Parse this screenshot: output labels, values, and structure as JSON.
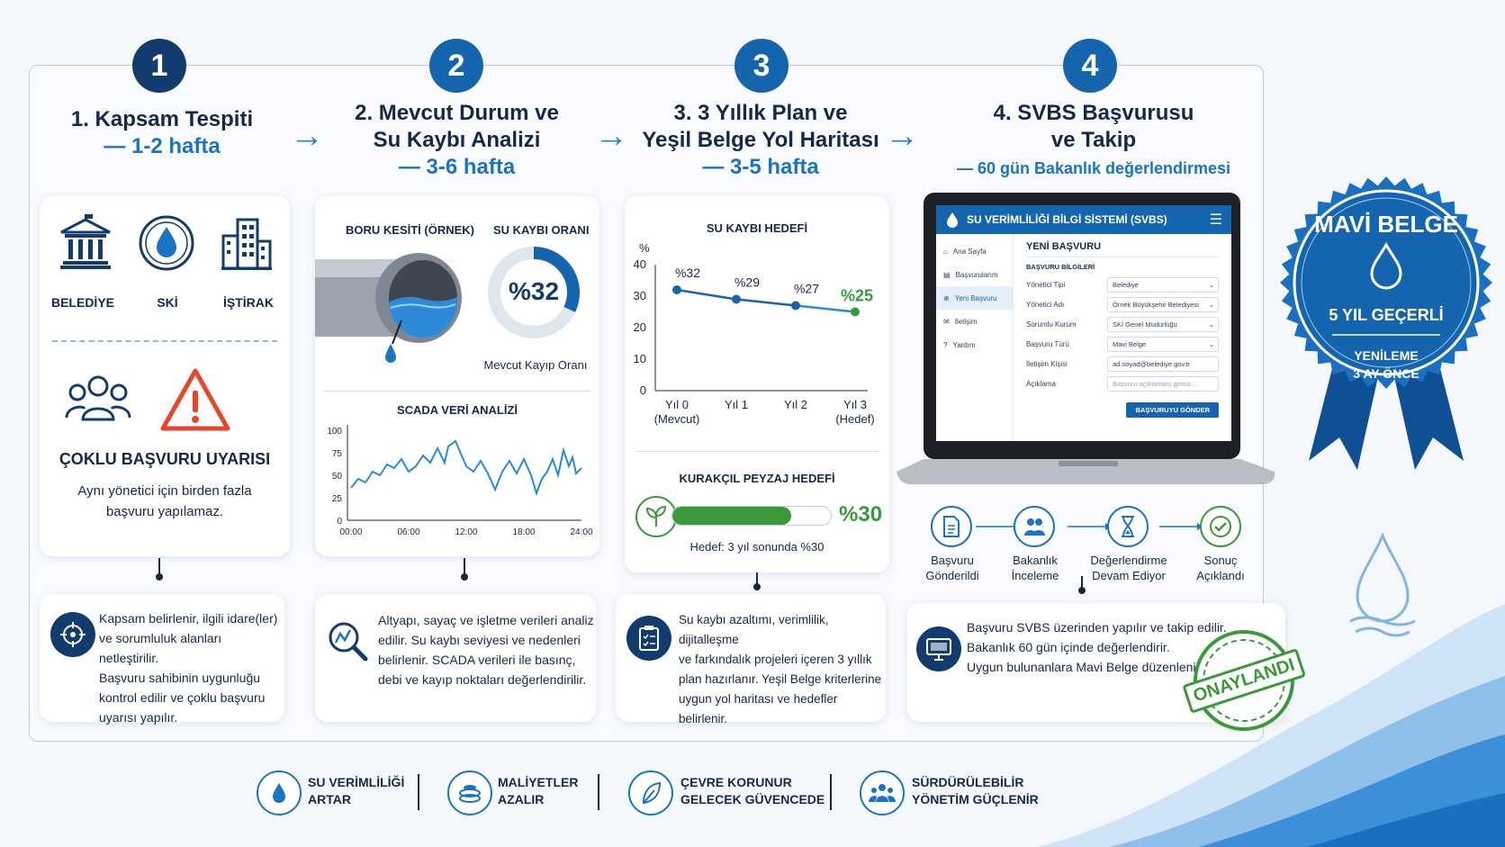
{
  "steps": [
    {
      "num": "1",
      "title": "1. Kapsam Tespiti",
      "duration": "— 1-2 hafta"
    },
    {
      "num": "2",
      "title_l1": "2. Mevcut Durum ve",
      "title_l2": "Su Kaybı Analizi",
      "duration": "— 3-6 hafta"
    },
    {
      "num": "3",
      "title_l1": "3. 3 Yıllık Plan ve",
      "title_l2": "Yeşil Belge Yol Haritası",
      "duration": "— 3-5 hafta"
    },
    {
      "num": "4",
      "title_l1": "4. SVBS Başvurusu",
      "title_l2": "ve Takip",
      "duration": "— 60 gün Bakanlık değerlendirmesi"
    }
  ],
  "card1": {
    "entities": [
      "BELEDİYE",
      "SKİ",
      "İŞTİRAK"
    ],
    "warning_title": "ÇOKLU BAŞVURU UYARISI",
    "warning_l1": "Aynı yönetici için birden fazla",
    "warning_l2": "başvuru yapılamaz."
  },
  "card2": {
    "pipe_label": "BORU KESİTİ (ÖRNEK)",
    "loss_label": "SU KAYBI ORANI",
    "loss_value": "%32",
    "loss_fraction": 0.32,
    "loss_caption": "Mevcut Kayıp Oranı",
    "scada_title": "SCADA VERİ ANALİZİ",
    "scada_y_ticks": [
      "100",
      "75",
      "50",
      "25",
      "0"
    ],
    "scada_x_ticks": [
      "00:00",
      "06:00",
      "12:00",
      "18:00",
      "24:00"
    ]
  },
  "card3": {
    "chart_title": "SU KAYBI HEDEFİ",
    "y_unit": "%",
    "y_ticks": [
      "40",
      "30",
      "20",
      "10",
      "0"
    ],
    "x_ticks": [
      [
        "Yıl 0",
        "(Mevcut)"
      ],
      [
        "Yıl 1",
        ""
      ],
      [
        "Yıl 2",
        ""
      ],
      [
        "Yıl 3",
        "(Hedef)"
      ]
    ],
    "point_labels": [
      "%32",
      "%29",
      "%27",
      "%25"
    ],
    "landscape_title": "KURAKÇIL PEYZAJ HEDEFİ",
    "landscape_value": "%30",
    "landscape_fraction": 0.75,
    "landscape_caption": "Hedef: 3 yıl sonunda %30"
  },
  "chart_data": {
    "type": "line",
    "title": "SU KAYBI HEDEFİ",
    "ylabel": "%",
    "categories": [
      "Yıl 0 (Mevcut)",
      "Yıl 1",
      "Yıl 2",
      "Yıl 3 (Hedef)"
    ],
    "values": [
      32,
      29,
      27,
      25
    ],
    "ylim": [
      0,
      40
    ]
  },
  "laptop": {
    "app_title": "SU VERİMLİLİĞİ BİLGİ SİSTEMİ (SVBS)",
    "sidebar": [
      "Ana Sayfa",
      "Başvurularım",
      "Yeni Başvuru",
      "İletişim",
      "Yardım"
    ],
    "form_title": "YENİ BAŞVURU",
    "section": "BAŞVURU BİLGİLERİ",
    "fields": [
      {
        "k": "Yönetici Tipi",
        "v": "Belediye"
      },
      {
        "k": "Yönetici Adı",
        "v": "Örnek Büyükşehir Belediyesi"
      },
      {
        "k": "Sorumlu Kurum",
        "v": "SKİ Genel Müdürlüğü"
      },
      {
        "k": "Başvuru Türü",
        "v": "Mavi Belge"
      },
      {
        "k": "İletişim Kişisi",
        "v": "ad.soyad@belediye.gov.tr"
      },
      {
        "k": "Açıklama",
        "v": "Başvuru açıklaması giriniz..."
      }
    ],
    "submit": "BAŞVURUYU GÖNDER"
  },
  "status_steps": [
    [
      "Başvuru",
      "Gönderildi"
    ],
    [
      "Bakanlık",
      "İnceleme"
    ],
    [
      "Değerlendirme",
      "Devam Ediyor"
    ],
    [
      "Sonuç",
      "Açıklandı"
    ]
  ],
  "descriptions": [
    [
      "Kapsam belirlenir, ilgili idare(ler)",
      "ve sorumluluk alanları netleştirilir.",
      "Başvuru sahibinin uygunluğu",
      "kontrol edilir ve çoklu başvuru",
      "uyarısı yapılır."
    ],
    [
      "Altyapı, sayaç ve işletme verileri analiz",
      "edilir. Su kaybı seviyesi ve nedenleri",
      "belirlenir. SCADA verileri ile basınç,",
      "debi ve kayıp noktaları değerlendirilir."
    ],
    [
      "Su kaybı azaltımı, verimlilik, dijitalleşme",
      "ve farkındalık projeleri içeren 3 yıllık",
      "plan hazırlanır. Yeşil Belge kriterlerine",
      "uygun yol haritası ve hedefler belirlenir."
    ],
    [
      "Başvuru SVBS üzerinden yapılır ve takip edilir.",
      "Bakanlık 60 gün içinde değerlendirir.",
      "Uygun bulunanlara Mavi Belge düzenlenir."
    ]
  ],
  "stamp": "ONAYLANDI",
  "badge": {
    "title": "MAVİ BELGE",
    "validity": "5 YIL GEÇERLİ",
    "renew_l1": "YENİLEME",
    "renew_l2": "3 AY ÖNCE"
  },
  "benefits": [
    [
      "SU VERİMLİLİĞİ",
      "ARTAR"
    ],
    [
      "MALİYETLER",
      "AZALIR"
    ],
    [
      "ÇEVRE KORUNUR",
      "GELECEK GÜVENCEDE"
    ],
    [
      "SÜRDÜRÜLEBİLİR",
      "YÖNETİM GÜÇLENİR"
    ]
  ],
  "colors": {
    "navy": "#123b6e",
    "blue": "#1565ae",
    "accent": "#1a73c4",
    "green": "#3a9a3a",
    "warning": "#e8462a"
  }
}
